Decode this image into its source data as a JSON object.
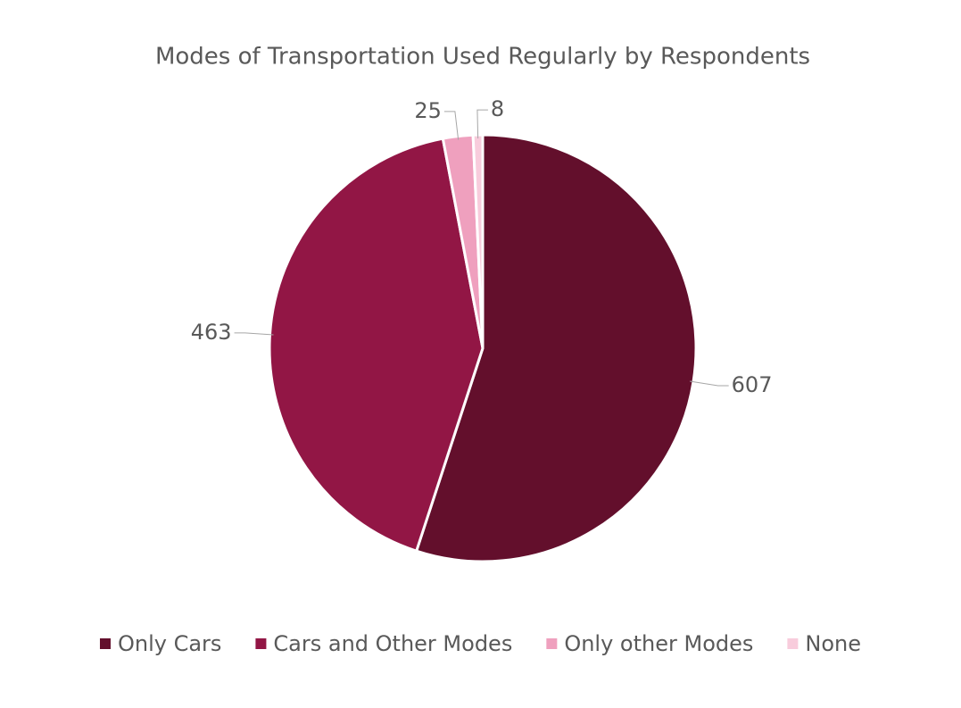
{
  "chart_data": {
    "type": "pie",
    "title": "Modes of Transportation Used Regularly by Respondents",
    "categories": [
      "Only Cars",
      "Cars and Other Modes",
      "Only other Modes",
      "None"
    ],
    "values": [
      607,
      463,
      25,
      8
    ],
    "colors": [
      "#630f2c",
      "#921645",
      "#efa0be",
      "#f8ccdc"
    ],
    "legend": "bottom"
  }
}
